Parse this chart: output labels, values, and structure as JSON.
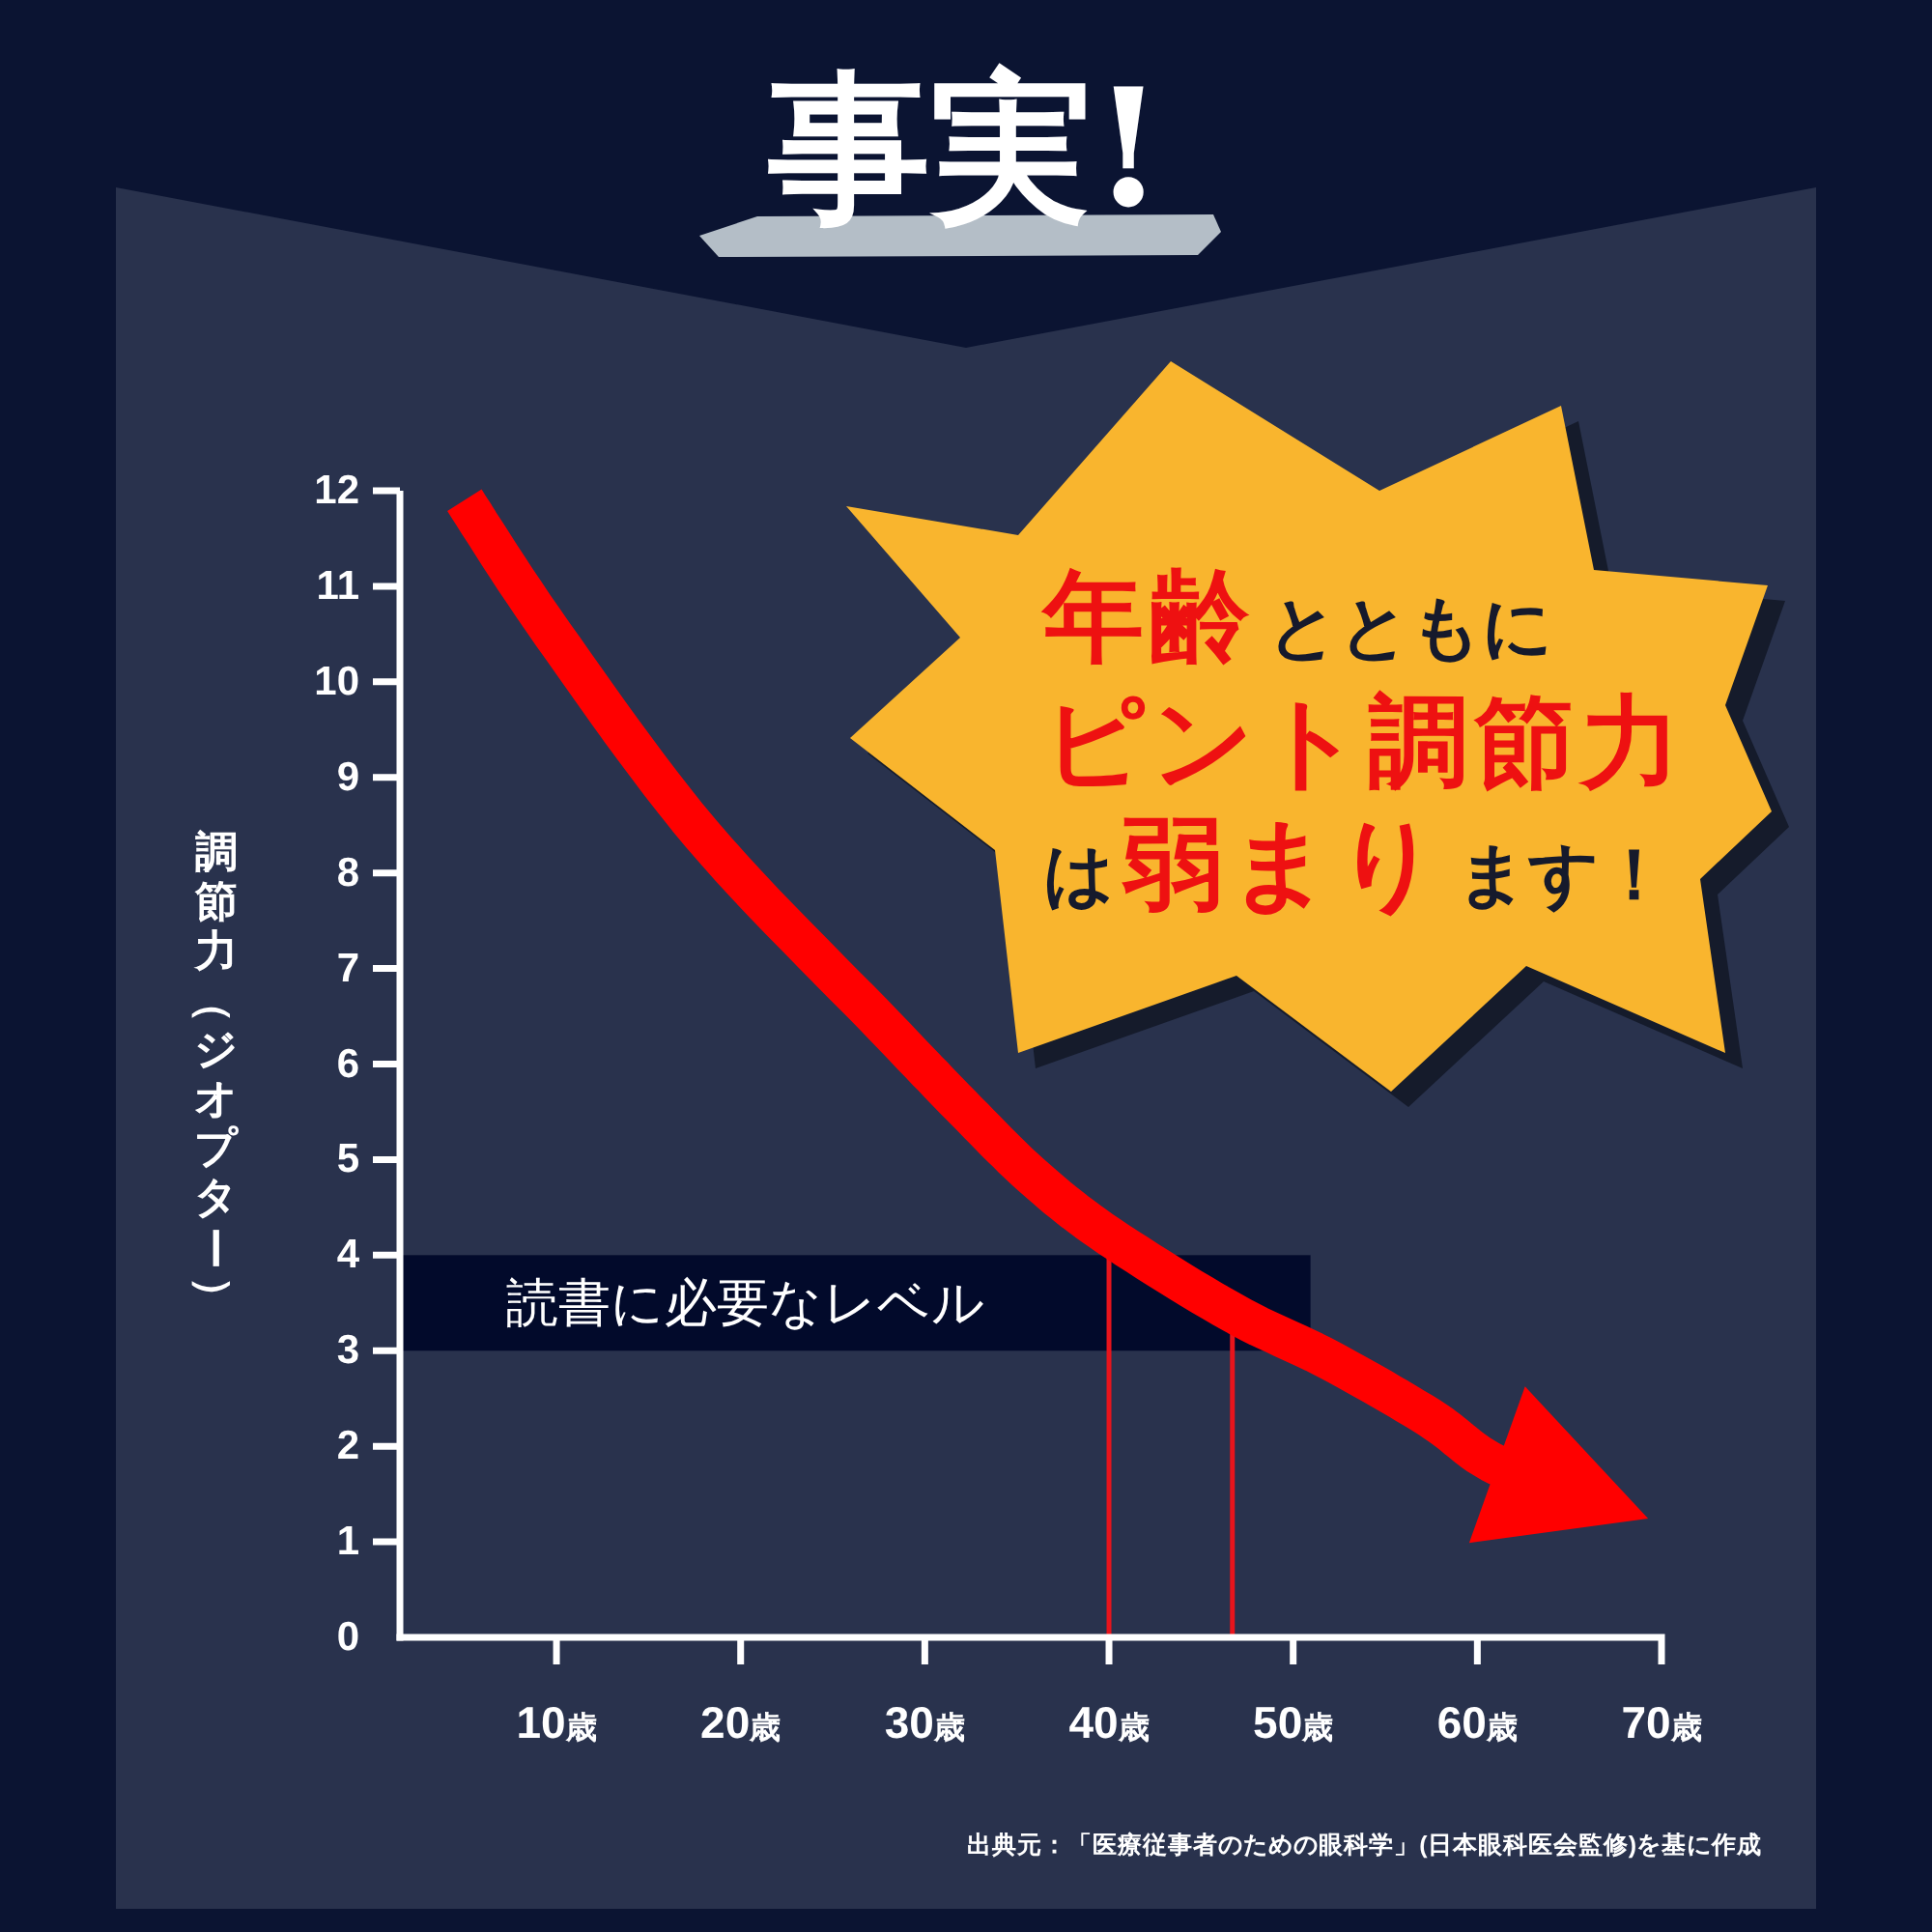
{
  "chart_data": {
    "type": "line",
    "title": "事実!",
    "ylabel": "調節力（ジオプター）",
    "x": [
      5,
      9.8,
      17.9,
      27.8,
      32.3,
      36,
      40,
      46.7,
      52,
      57.4,
      61.1,
      67
    ],
    "series": [
      {
        "color": "#ff0000",
        "values": [
          11.9,
          10.5,
          8.4,
          6.4,
          5.5,
          4.8,
          4.2,
          3.4,
          2.9,
          2.3,
          1.8,
          1.4
        ]
      }
    ],
    "xlim": [
      1.5,
      70
    ],
    "xticks": [
      {
        "value": 10,
        "label": "10歳"
      },
      {
        "value": 20,
        "label": "20歳"
      },
      {
        "value": 30,
        "label": "30歳"
      },
      {
        "value": 40,
        "label": "40歳"
      },
      {
        "value": 50,
        "label": "50歳"
      },
      {
        "value": 60,
        "label": "60歳"
      },
      {
        "value": 70,
        "label": "70歳"
      }
    ],
    "ylim": [
      0,
      12
    ],
    "yticks": [
      0,
      1,
      2,
      3,
      4,
      5,
      6,
      7,
      8,
      9,
      10,
      11,
      12
    ],
    "bands": [
      {
        "axis": "y",
        "from": 3,
        "to": 4,
        "label": "読書に必要なレベル",
        "color": "#020a2b"
      }
    ],
    "ref_lines": [
      {
        "axis": "x",
        "value": 40,
        "color": "#e8141c"
      },
      {
        "axis": "x",
        "value": 46.7,
        "color": "#e8141c"
      }
    ],
    "annotations": [
      "年齢",
      "とともに",
      "ピント調節力",
      "は",
      "弱まり",
      "ます！",
      "出典元：「医療従事者のための眼科学」(日本眼科医会監修)を基に作成"
    ]
  }
}
